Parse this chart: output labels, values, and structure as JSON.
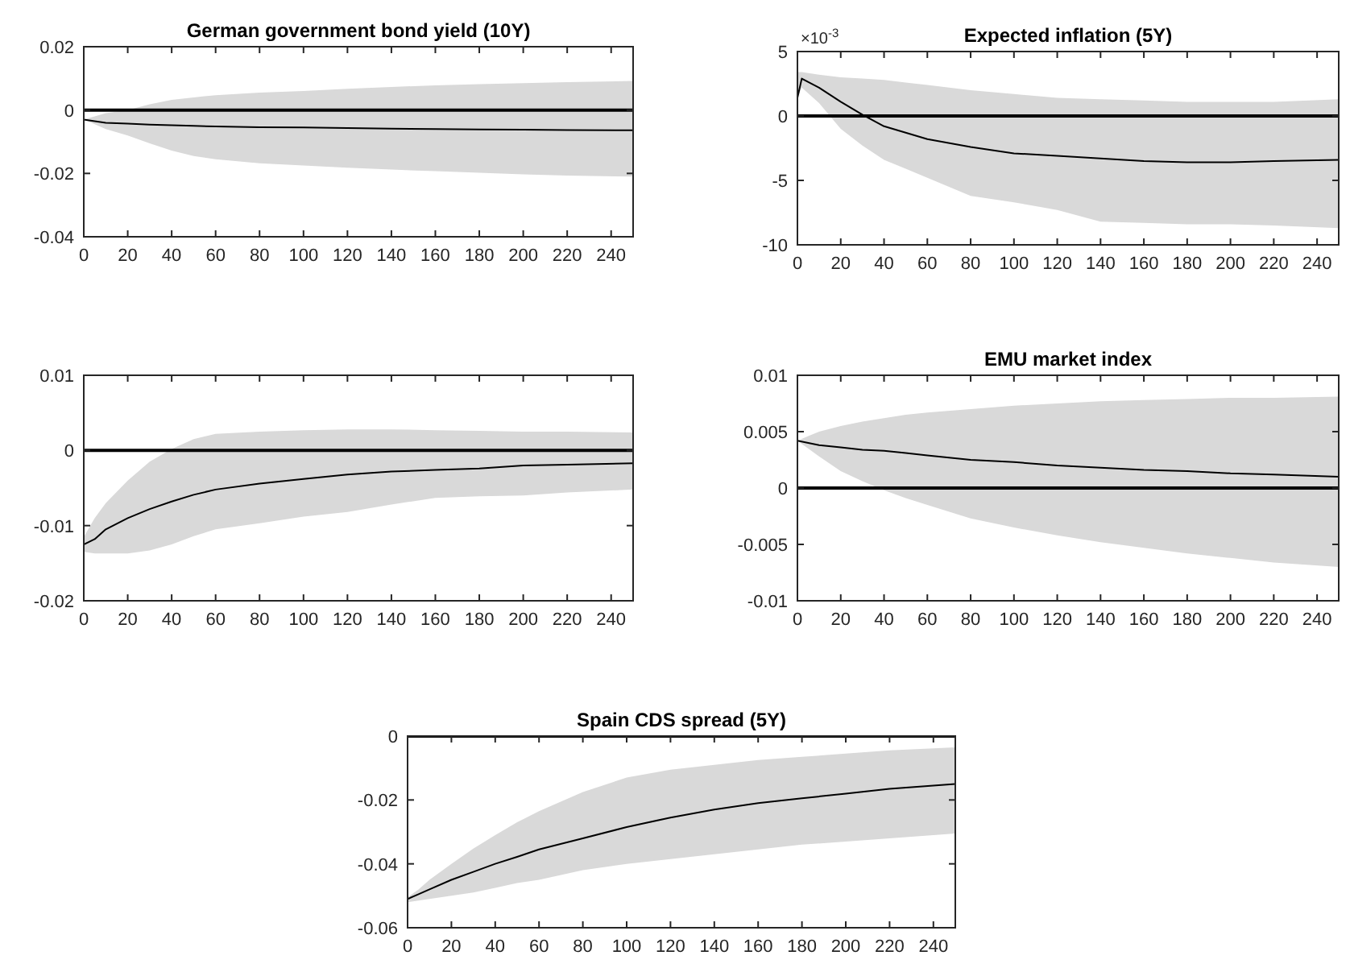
{
  "chart_data": [
    {
      "type": "line",
      "title": "German government bond yield (10Y)",
      "x": [
        0,
        5,
        10,
        20,
        30,
        40,
        50,
        60,
        80,
        100,
        120,
        140,
        160,
        180,
        200,
        220,
        250
      ],
      "xlim": [
        0,
        250
      ],
      "xticks": [
        0,
        20,
        40,
        60,
        80,
        100,
        120,
        140,
        160,
        180,
        200,
        220,
        240
      ],
      "ylim": [
        -0.04,
        0.02
      ],
      "yticks": [
        -0.04,
        -0.02,
        0,
        0.02
      ],
      "ref_lines": [
        {
          "axis": "y",
          "value": 0,
          "color": "#000000"
        }
      ],
      "series": [
        {
          "color": "#000000",
          "values": [
            -0.003,
            -0.0035,
            -0.004,
            -0.0043,
            -0.0046,
            -0.0048,
            -0.005,
            -0.0052,
            -0.0054,
            -0.0055,
            -0.0057,
            -0.0059,
            -0.006,
            -0.0061,
            -0.0062,
            -0.0063,
            -0.0064
          ],
          "upper": [
            -0.003,
            -0.002,
            -0.001,
            0,
            0.0018,
            0.0032,
            0.004,
            0.0047,
            0.0055,
            0.006,
            0.0067,
            0.0073,
            0.0078,
            0.0082,
            0.0085,
            0.0088,
            0.0092
          ],
          "lower": [
            -0.003,
            -0.0045,
            -0.006,
            -0.008,
            -0.0105,
            -0.0128,
            -0.0145,
            -0.0155,
            -0.0168,
            -0.0175,
            -0.0182,
            -0.0188,
            -0.0193,
            -0.0198,
            -0.0203,
            -0.0207,
            -0.021
          ]
        }
      ]
    },
    {
      "type": "line",
      "title": "Expected inflation (5Y)",
      "annotations": [
        "×10$^{-3}$"
      ],
      "x": [
        0,
        2,
        10,
        20,
        30,
        40,
        50,
        60,
        80,
        100,
        120,
        140,
        160,
        180,
        200,
        220,
        250
      ],
      "xlim": [
        0,
        250
      ],
      "xticks": [
        0,
        20,
        40,
        60,
        80,
        100,
        120,
        140,
        160,
        180,
        200,
        220,
        240
      ],
      "ylim": [
        -10,
        5
      ],
      "yticks": [
        -10,
        -5,
        0,
        5
      ],
      "ref_lines": [
        {
          "axis": "y",
          "value": 0,
          "color": "#000000"
        }
      ],
      "series": [
        {
          "color": "#000000",
          "values": [
            1.4,
            2.9,
            2.2,
            1.1,
            0.1,
            -0.8,
            -1.3,
            -1.8,
            -2.4,
            -2.9,
            -3.1,
            -3.3,
            -3.5,
            -3.6,
            -3.6,
            -3.5,
            -3.4
          ],
          "upper": [
            3.4,
            3.4,
            3.2,
            3.0,
            2.9,
            2.8,
            2.6,
            2.4,
            2.0,
            1.7,
            1.4,
            1.3,
            1.2,
            1.1,
            1.1,
            1.1,
            1.3
          ],
          "lower": [
            1.4,
            2.2,
            1.0,
            -1.0,
            -2.3,
            -3.4,
            -4.1,
            -4.8,
            -6.2,
            -6.7,
            -7.3,
            -8.2,
            -8.3,
            -8.4,
            -8.4,
            -8.5,
            -8.7
          ]
        }
      ]
    },
    {
      "type": "line",
      "x": [
        0,
        5,
        10,
        20,
        30,
        40,
        50,
        60,
        80,
        100,
        120,
        140,
        160,
        180,
        200,
        220,
        250
      ],
      "xlim": [
        0,
        250
      ],
      "xticks": [
        0,
        20,
        40,
        60,
        80,
        100,
        120,
        140,
        160,
        180,
        200,
        220,
        240
      ],
      "ylim": [
        -0.02,
        0.01
      ],
      "yticks": [
        -0.02,
        -0.01,
        0,
        0.01
      ],
      "ref_lines": [
        {
          "axis": "y",
          "value": 0,
          "color": "#000000"
        }
      ],
      "series": [
        {
          "color": "#000000",
          "values": [
            -0.0125,
            -0.0118,
            -0.0105,
            -0.009,
            -0.0078,
            -0.0068,
            -0.0059,
            -0.0052,
            -0.0044,
            -0.0038,
            -0.0032,
            -0.0028,
            -0.0026,
            -0.0024,
            -0.002,
            -0.0019,
            -0.0017
          ],
          "upper": [
            -0.0115,
            -0.009,
            -0.007,
            -0.004,
            -0.0015,
            0.0002,
            0.0015,
            0.0022,
            0.0025,
            0.0027,
            0.0028,
            0.0028,
            0.0027,
            0.0026,
            0.0025,
            0.0025,
            0.0024
          ],
          "lower": [
            -0.0135,
            -0.0137,
            -0.0137,
            -0.0137,
            -0.0133,
            -0.0125,
            -0.0114,
            -0.0105,
            -0.0097,
            -0.0088,
            -0.0082,
            -0.0072,
            -0.0063,
            -0.0061,
            -0.006,
            -0.0056,
            -0.0052
          ]
        }
      ]
    },
    {
      "type": "line",
      "title": "EMU market index",
      "x": [
        0,
        5,
        10,
        20,
        30,
        40,
        50,
        60,
        80,
        100,
        120,
        140,
        160,
        180,
        200,
        220,
        250
      ],
      "xlim": [
        0,
        250
      ],
      "xticks": [
        0,
        20,
        40,
        60,
        80,
        100,
        120,
        140,
        160,
        180,
        200,
        220,
        240
      ],
      "ylim": [
        -0.01,
        0.01
      ],
      "yticks": [
        -0.01,
        -0.005,
        0,
        0.005,
        0.01
      ],
      "ref_lines": [
        {
          "axis": "y",
          "value": 0,
          "color": "#000000"
        }
      ],
      "series": [
        {
          "color": "#000000",
          "values": [
            0.0042,
            0.004,
            0.0038,
            0.0036,
            0.0034,
            0.0033,
            0.0031,
            0.0029,
            0.0025,
            0.0023,
            0.002,
            0.0018,
            0.0016,
            0.0015,
            0.0013,
            0.0012,
            0.001
          ],
          "upper": [
            0.0042,
            0.0046,
            0.005,
            0.0055,
            0.0059,
            0.0062,
            0.0065,
            0.0067,
            0.007,
            0.0073,
            0.0075,
            0.0077,
            0.0078,
            0.0079,
            0.008,
            0.008,
            0.0081
          ],
          "lower": [
            0.0042,
            0.0035,
            0.0028,
            0.0015,
            0.0006,
            -0.0002,
            -0.0009,
            -0.0015,
            -0.0027,
            -0.0035,
            -0.0042,
            -0.0048,
            -0.0053,
            -0.0058,
            -0.0062,
            -0.0066,
            -0.007
          ]
        }
      ]
    },
    {
      "type": "line",
      "title": "Spain CDS spread (5Y)",
      "x": [
        0,
        5,
        10,
        20,
        30,
        40,
        50,
        60,
        80,
        100,
        120,
        140,
        160,
        180,
        200,
        220,
        250
      ],
      "xlim": [
        0,
        250
      ],
      "xticks": [
        0,
        20,
        40,
        60,
        80,
        100,
        120,
        140,
        160,
        180,
        200,
        220,
        240
      ],
      "ylim": [
        -0.06,
        0
      ],
      "yticks": [
        -0.06,
        -0.04,
        -0.02,
        0
      ],
      "ref_lines": [
        {
          "axis": "y",
          "value": 0,
          "color": "#000000"
        }
      ],
      "series": [
        {
          "color": "#000000",
          "values": [
            -0.051,
            -0.0495,
            -0.048,
            -0.045,
            -0.0425,
            -0.04,
            -0.0378,
            -0.0355,
            -0.032,
            -0.0285,
            -0.0255,
            -0.023,
            -0.021,
            -0.0195,
            -0.018,
            -0.0165,
            -0.015
          ],
          "upper": [
            -0.0505,
            -0.048,
            -0.045,
            -0.04,
            -0.0352,
            -0.031,
            -0.027,
            -0.0235,
            -0.0175,
            -0.013,
            -0.0105,
            -0.009,
            -0.0075,
            -0.0065,
            -0.0055,
            -0.0045,
            -0.0035
          ],
          "lower": [
            -0.052,
            -0.0515,
            -0.051,
            -0.05,
            -0.049,
            -0.0475,
            -0.046,
            -0.045,
            -0.042,
            -0.04,
            -0.0385,
            -0.037,
            -0.0355,
            -0.034,
            -0.033,
            -0.032,
            -0.0305
          ]
        }
      ]
    }
  ]
}
